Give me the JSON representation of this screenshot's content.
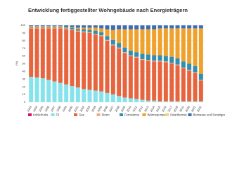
{
  "chart_data": {
    "type": "stacked_bar",
    "title": "Entwicklung fertiggestellter Wohngebäude nach Energieträgern",
    "y_label": "(%)",
    "categories": [
      "1993",
      "1994",
      "1995",
      "1996",
      "1997",
      "1998",
      "1999",
      "2000",
      "2001",
      "2002",
      "2003",
      "2004",
      "2005",
      "2006",
      "2007",
      "2008",
      "2009",
      "2010",
      "2011",
      "2012",
      "2013",
      "2014",
      "2015",
      "2016",
      "2017",
      "2018",
      "2019",
      "2020",
      "2021",
      "2022"
    ],
    "ylim": [
      0,
      100
    ],
    "yticks": [
      0,
      10,
      20,
      30,
      40,
      50,
      60,
      70,
      80,
      90,
      100
    ],
    "grid": true,
    "series": [
      {
        "name": "Kohle/Koks",
        "color": "#d6156a",
        "values": [
          0,
          0,
          0,
          0,
          0,
          0,
          0,
          0,
          0,
          0,
          0,
          0,
          0,
          0,
          0,
          0,
          0,
          0,
          0,
          0,
          0,
          0,
          0,
          0,
          0,
          0,
          0,
          0,
          0,
          0
        ]
      },
      {
        "name": "Öl",
        "color": "#86e3ec",
        "values": [
          33,
          32,
          31,
          29,
          27,
          25,
          23,
          21,
          19,
          17,
          16,
          15,
          14,
          12,
          10,
          8,
          6,
          5,
          4,
          3,
          2,
          2,
          1,
          1,
          1,
          1,
          1,
          1,
          1,
          1
        ]
      },
      {
        "name": "Gas",
        "color": "#e7653e",
        "values": [
          63,
          64,
          65,
          67,
          69,
          71,
          72,
          73,
          73,
          74,
          74,
          73,
          72,
          68,
          64,
          62,
          58,
          55,
          54,
          52,
          52,
          51,
          52,
          51,
          49,
          47,
          43,
          40,
          37,
          27
        ]
      },
      {
        "name": "Strom",
        "color": "#f2a98a",
        "values": [
          1,
          1,
          1,
          1,
          1,
          1,
          1,
          1,
          1,
          1,
          1,
          1,
          1,
          1,
          1,
          1,
          1,
          1,
          1,
          1,
          1,
          1,
          1,
          1,
          1,
          1,
          1,
          1,
          1,
          1
        ]
      },
      {
        "name": "Fernwärme",
        "color": "#2f8fb0",
        "values": [
          1,
          1,
          1,
          1,
          1,
          1,
          1,
          2,
          2,
          3,
          3,
          4,
          4,
          5,
          6,
          6,
          6,
          6,
          6,
          7,
          7,
          7,
          7,
          7,
          8,
          8,
          8,
          8,
          8,
          8
        ]
      },
      {
        "name": "Wärmepumpe",
        "color": "#f0a12c",
        "values": [
          1,
          1,
          1,
          1,
          1,
          1,
          1,
          1,
          2,
          2,
          3,
          4,
          5,
          9,
          13,
          18,
          24,
          28,
          30,
          32,
          33,
          34,
          35,
          36,
          37,
          39,
          43,
          46,
          49,
          59
        ]
      },
      {
        "name": "Solarthermie",
        "color": "#f6d27a",
        "values": [
          0,
          0,
          0,
          0,
          0,
          0,
          0,
          0,
          0,
          0,
          0,
          0,
          0,
          0,
          0,
          0,
          0,
          0,
          0,
          0,
          0,
          0,
          0,
          0,
          0,
          0,
          0,
          0,
          0,
          0
        ]
      },
      {
        "name": "Biomasse und Sonstiges",
        "color": "#3a6db5",
        "values": [
          1,
          1,
          1,
          1,
          1,
          1,
          2,
          2,
          3,
          3,
          3,
          3,
          4,
          5,
          6,
          5,
          5,
          5,
          5,
          5,
          5,
          5,
          4,
          4,
          4,
          4,
          4,
          4,
          4,
          4
        ]
      }
    ]
  }
}
